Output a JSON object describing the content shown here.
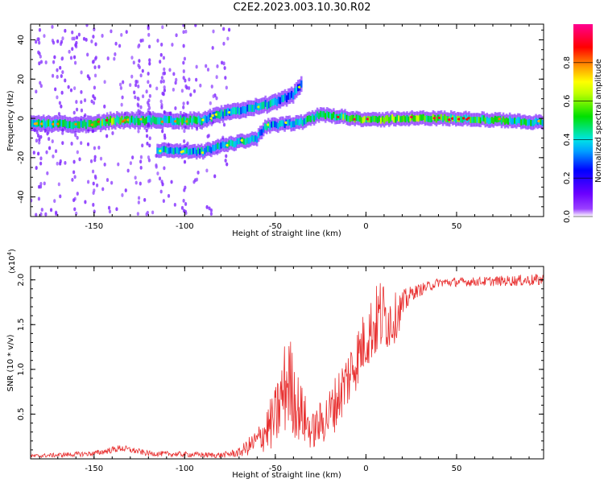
{
  "title": "C2E2.2023.003.10.30.R02",
  "chart_data": [
    {
      "type": "heatmap",
      "xlabel": "Height of straight line (km)",
      "ylabel": "Frequency (Hz)",
      "xlim": [
        -185,
        98
      ],
      "ylim": [
        -50,
        48
      ],
      "xticks": [
        -150,
        -100,
        -50,
        0,
        50
      ],
      "yticks": [
        -40,
        -20,
        0,
        20,
        40
      ],
      "colorbar": {
        "label": "Normalized spectral amplitude",
        "ticks": [
          0.0,
          0.2,
          0.4,
          0.6,
          0.8
        ],
        "range": [
          0,
          1
        ],
        "colormap": [
          "#ffffff",
          "#7b00ff",
          "#0000ff",
          "#00e5e5",
          "#00e000",
          "#ffff00",
          "#ff9900",
          "#ff0000",
          "#ff00a0"
        ]
      },
      "main_band": [
        {
          "x": -185,
          "f": -2,
          "a": 0.55
        },
        {
          "x": -170,
          "f": -3,
          "a": 0.6
        },
        {
          "x": -150,
          "f": -3,
          "a": 0.6
        },
        {
          "x": -140,
          "f": -1,
          "a": 0.75
        },
        {
          "x": -130,
          "f": -1,
          "a": 0.55
        },
        {
          "x": -115,
          "f": -1,
          "a": 0.6
        },
        {
          "x": -100,
          "f": -1,
          "a": 0.6
        },
        {
          "x": -90,
          "f": -1,
          "a": 0.5
        },
        {
          "x": -80,
          "f": 2,
          "a": 0.5
        },
        {
          "x": -70,
          "f": 4,
          "a": 0.45
        },
        {
          "x": -60,
          "f": 6,
          "a": 0.45
        },
        {
          "x": -50,
          "f": 8,
          "a": 0.45
        },
        {
          "x": -40,
          "f": 12,
          "a": 0.4
        },
        {
          "x": -35,
          "f": 18,
          "a": 0.45
        }
      ],
      "second_band": [
        {
          "x": -115,
          "f": -16,
          "a": 0.5
        },
        {
          "x": -100,
          "f": -17,
          "a": 0.5
        },
        {
          "x": -90,
          "f": -17,
          "a": 0.45
        },
        {
          "x": -80,
          "f": -14,
          "a": 0.5
        },
        {
          "x": -70,
          "f": -12,
          "a": 0.5
        },
        {
          "x": -60,
          "f": -10,
          "a": 0.5
        },
        {
          "x": -55,
          "f": -4,
          "a": 0.45
        },
        {
          "x": -45,
          "f": -3,
          "a": 0.5
        },
        {
          "x": -35,
          "f": -2,
          "a": 0.5
        },
        {
          "x": -25,
          "f": 2,
          "a": 0.6
        },
        {
          "x": -15,
          "f": 1,
          "a": 0.7
        },
        {
          "x": -5,
          "f": 0,
          "a": 0.75
        },
        {
          "x": 5,
          "f": -1,
          "a": 0.7
        },
        {
          "x": 15,
          "f": 0,
          "a": 0.8
        },
        {
          "x": 25,
          "f": 0,
          "a": 0.75
        },
        {
          "x": 50,
          "f": 0,
          "a": 0.7
        },
        {
          "x": 75,
          "f": -1,
          "a": 0.6
        },
        {
          "x": 98,
          "f": -2,
          "a": 0.55
        }
      ]
    },
    {
      "type": "line",
      "xlabel": "Height of straight line (km)",
      "ylabel": "SNR (10 * v/v)",
      "multiplier": "(x10",
      "multiplier_exp": "4",
      "xlim": [
        -185,
        98
      ],
      "ylim": [
        0,
        2.15
      ],
      "xticks": [
        -150,
        -100,
        -50,
        0,
        50
      ],
      "yticks": [
        0.5,
        1.0,
        1.5,
        2.0
      ],
      "color": "#e83030",
      "envelope": [
        {
          "x": -185,
          "y": 0.03,
          "s": 0.02
        },
        {
          "x": -150,
          "y": 0.06,
          "s": 0.03
        },
        {
          "x": -135,
          "y": 0.12,
          "s": 0.04
        },
        {
          "x": -120,
          "y": 0.06,
          "s": 0.03
        },
        {
          "x": -100,
          "y": 0.05,
          "s": 0.03
        },
        {
          "x": -80,
          "y": 0.04,
          "s": 0.03
        },
        {
          "x": -70,
          "y": 0.07,
          "s": 0.05
        },
        {
          "x": -60,
          "y": 0.2,
          "s": 0.15
        },
        {
          "x": -50,
          "y": 0.45,
          "s": 0.35
        },
        {
          "x": -43,
          "y": 0.9,
          "s": 0.6
        },
        {
          "x": -38,
          "y": 0.6,
          "s": 0.4
        },
        {
          "x": -30,
          "y": 0.3,
          "s": 0.2
        },
        {
          "x": -20,
          "y": 0.5,
          "s": 0.3
        },
        {
          "x": -10,
          "y": 0.9,
          "s": 0.35
        },
        {
          "x": 0,
          "y": 1.35,
          "s": 0.35
        },
        {
          "x": 8,
          "y": 1.6,
          "s": 0.45
        },
        {
          "x": 15,
          "y": 1.55,
          "s": 0.3
        },
        {
          "x": 25,
          "y": 1.85,
          "s": 0.08
        },
        {
          "x": 40,
          "y": 1.97,
          "s": 0.05
        },
        {
          "x": 60,
          "y": 1.98,
          "s": 0.05
        },
        {
          "x": 98,
          "y": 2.0,
          "s": 0.07
        }
      ]
    }
  ]
}
